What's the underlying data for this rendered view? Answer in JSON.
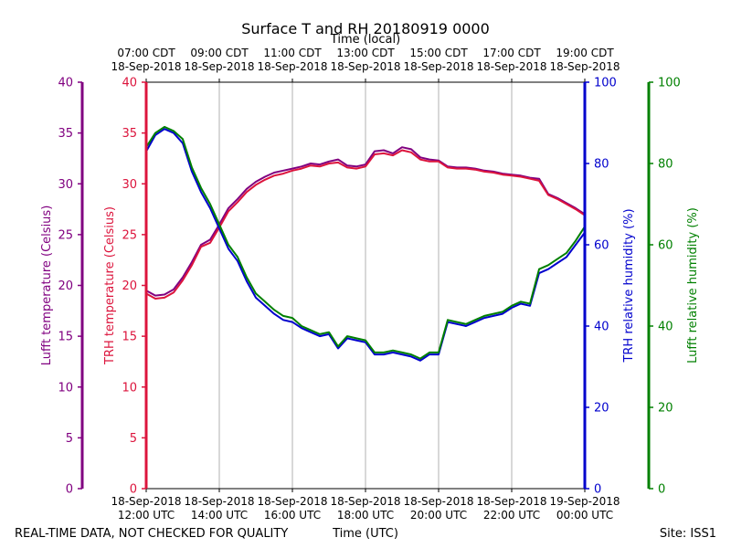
{
  "chart_data": {
    "type": "line",
    "title": "Surface T and RH 20180919 0000",
    "top_axis_label": "Time (local)",
    "xlabel": "Time (UTC)",
    "footer_left": "REAL-TIME DATA, NOT CHECKED FOR QUALITY",
    "footer_right": "Site: ISS1",
    "x_range_hours_utc": [
      12,
      24
    ],
    "utc_ticks": [
      {
        "hour": 12,
        "date": "18-Sep-2018",
        "time": "12:00 UTC"
      },
      {
        "hour": 14,
        "date": "18-Sep-2018",
        "time": "14:00 UTC"
      },
      {
        "hour": 16,
        "date": "18-Sep-2018",
        "time": "16:00 UTC"
      },
      {
        "hour": 18,
        "date": "18-Sep-2018",
        "time": "18:00 UTC"
      },
      {
        "hour": 20,
        "date": "18-Sep-2018",
        "time": "20:00 UTC"
      },
      {
        "hour": 22,
        "date": "18-Sep-2018",
        "time": "22:00 UTC"
      },
      {
        "hour": 24,
        "date": "19-Sep-2018",
        "time": "00:00 UTC"
      }
    ],
    "local_ticks": [
      {
        "hour": 12,
        "time": "07:00 CDT",
        "date": "18-Sep-2018"
      },
      {
        "hour": 14,
        "time": "09:00 CDT",
        "date": "18-Sep-2018"
      },
      {
        "hour": 16,
        "time": "11:00 CDT",
        "date": "18-Sep-2018"
      },
      {
        "hour": 18,
        "time": "13:00 CDT",
        "date": "18-Sep-2018"
      },
      {
        "hour": 20,
        "time": "15:00 CDT",
        "date": "18-Sep-2018"
      },
      {
        "hour": 22,
        "time": "17:00 CDT",
        "date": "18-Sep-2018"
      },
      {
        "hour": 24,
        "time": "19:00 CDT",
        "date": "18-Sep-2018"
      }
    ],
    "axes": {
      "lufft_temp": {
        "label": "Lufft temperature (Celsius)",
        "color": "#800080",
        "ylim": [
          0,
          40
        ],
        "ticks": [
          0,
          5,
          10,
          15,
          20,
          25,
          30,
          35,
          40
        ]
      },
      "trh_temp": {
        "label": "TRH temperature (Celsius)",
        "color": "#dc143c",
        "ylim": [
          0,
          40
        ],
        "ticks": [
          0,
          5,
          10,
          15,
          20,
          25,
          30,
          35,
          40
        ]
      },
      "trh_rh": {
        "label": "TRH relative humidity (%)",
        "color": "#0000cd",
        "ylim": [
          0,
          100
        ],
        "ticks": [
          0,
          20,
          40,
          60,
          80,
          100
        ]
      },
      "lufft_rh": {
        "label": "Lufft relative humidity (%)",
        "color": "#008000",
        "ylim": [
          0,
          100
        ],
        "ticks": [
          0,
          20,
          40,
          60,
          80,
          100
        ]
      }
    },
    "x": [
      12.0,
      12.25,
      12.5,
      12.75,
      13.0,
      13.25,
      13.5,
      13.75,
      14.0,
      14.25,
      14.5,
      14.75,
      15.0,
      15.25,
      15.5,
      15.75,
      16.0,
      16.25,
      16.5,
      16.75,
      17.0,
      17.25,
      17.5,
      17.75,
      18.0,
      18.25,
      18.5,
      18.75,
      19.0,
      19.25,
      19.5,
      19.75,
      20.0,
      20.25,
      20.5,
      20.75,
      21.0,
      21.25,
      21.5,
      21.75,
      22.0,
      22.25,
      22.5,
      22.75,
      23.0,
      23.25,
      23.5,
      23.75,
      24.0
    ],
    "series": [
      {
        "name": "Lufft temperature",
        "axis": "lufft_temp",
        "color": "#800080",
        "values": [
          19.5,
          19.0,
          19.1,
          19.6,
          20.8,
          22.3,
          24.0,
          24.5,
          26.0,
          27.6,
          28.5,
          29.5,
          30.2,
          30.7,
          31.1,
          31.3,
          31.5,
          31.7,
          32.0,
          31.9,
          32.2,
          32.4,
          31.8,
          31.7,
          31.9,
          33.2,
          33.3,
          33.0,
          33.6,
          33.4,
          32.6,
          32.4,
          32.3,
          31.7,
          31.6,
          31.6,
          31.5,
          31.3,
          31.2,
          31.0,
          30.9,
          30.8,
          30.6,
          30.5,
          29.0,
          28.6,
          28.1,
          27.6,
          27.0
        ]
      },
      {
        "name": "TRH temperature",
        "axis": "trh_temp",
        "color": "#dc143c",
        "values": [
          19.2,
          18.7,
          18.8,
          19.3,
          20.5,
          22.0,
          23.8,
          24.2,
          25.7,
          27.3,
          28.2,
          29.2,
          29.9,
          30.4,
          30.8,
          31.0,
          31.3,
          31.5,
          31.8,
          31.7,
          32.0,
          32.1,
          31.6,
          31.5,
          31.7,
          32.9,
          33.0,
          32.8,
          33.3,
          33.1,
          32.4,
          32.2,
          32.2,
          31.6,
          31.5,
          31.5,
          31.4,
          31.2,
          31.1,
          30.9,
          30.8,
          30.7,
          30.5,
          30.3,
          28.9,
          28.5,
          28.0,
          27.5,
          26.9
        ]
      },
      {
        "name": "TRH relative humidity",
        "axis": "trh_rh",
        "color": "#0000cd",
        "values": [
          83.0,
          87.0,
          88.5,
          87.5,
          85.0,
          78.0,
          73.0,
          69.0,
          64.0,
          59.0,
          56.0,
          51.0,
          47.0,
          45.0,
          43.0,
          41.5,
          41.0,
          39.5,
          38.5,
          37.5,
          38.0,
          34.5,
          37.0,
          36.5,
          36.0,
          33.0,
          33.0,
          33.5,
          33.0,
          32.5,
          31.5,
          33.0,
          33.0,
          41.0,
          40.5,
          40.0,
          41.0,
          42.0,
          42.5,
          43.0,
          44.5,
          45.5,
          45.0,
          53.0,
          54.0,
          55.5,
          57.0,
          60.0,
          63.0
        ]
      },
      {
        "name": "Lufft relative humidity",
        "axis": "lufft_rh",
        "color": "#008000",
        "values": [
          84.0,
          87.5,
          89.0,
          88.0,
          86.0,
          79.0,
          74.0,
          70.0,
          65.0,
          60.0,
          57.0,
          52.0,
          48.0,
          46.0,
          44.0,
          42.5,
          42.0,
          40.0,
          39.0,
          38.0,
          38.5,
          35.0,
          37.5,
          37.0,
          36.5,
          33.5,
          33.5,
          34.0,
          33.5,
          33.0,
          32.0,
          33.5,
          33.5,
          41.5,
          41.0,
          40.5,
          41.5,
          42.5,
          43.0,
          43.5,
          45.0,
          46.0,
          45.5,
          54.0,
          55.0,
          56.5,
          58.0,
          61.0,
          64.5
        ]
      }
    ]
  }
}
